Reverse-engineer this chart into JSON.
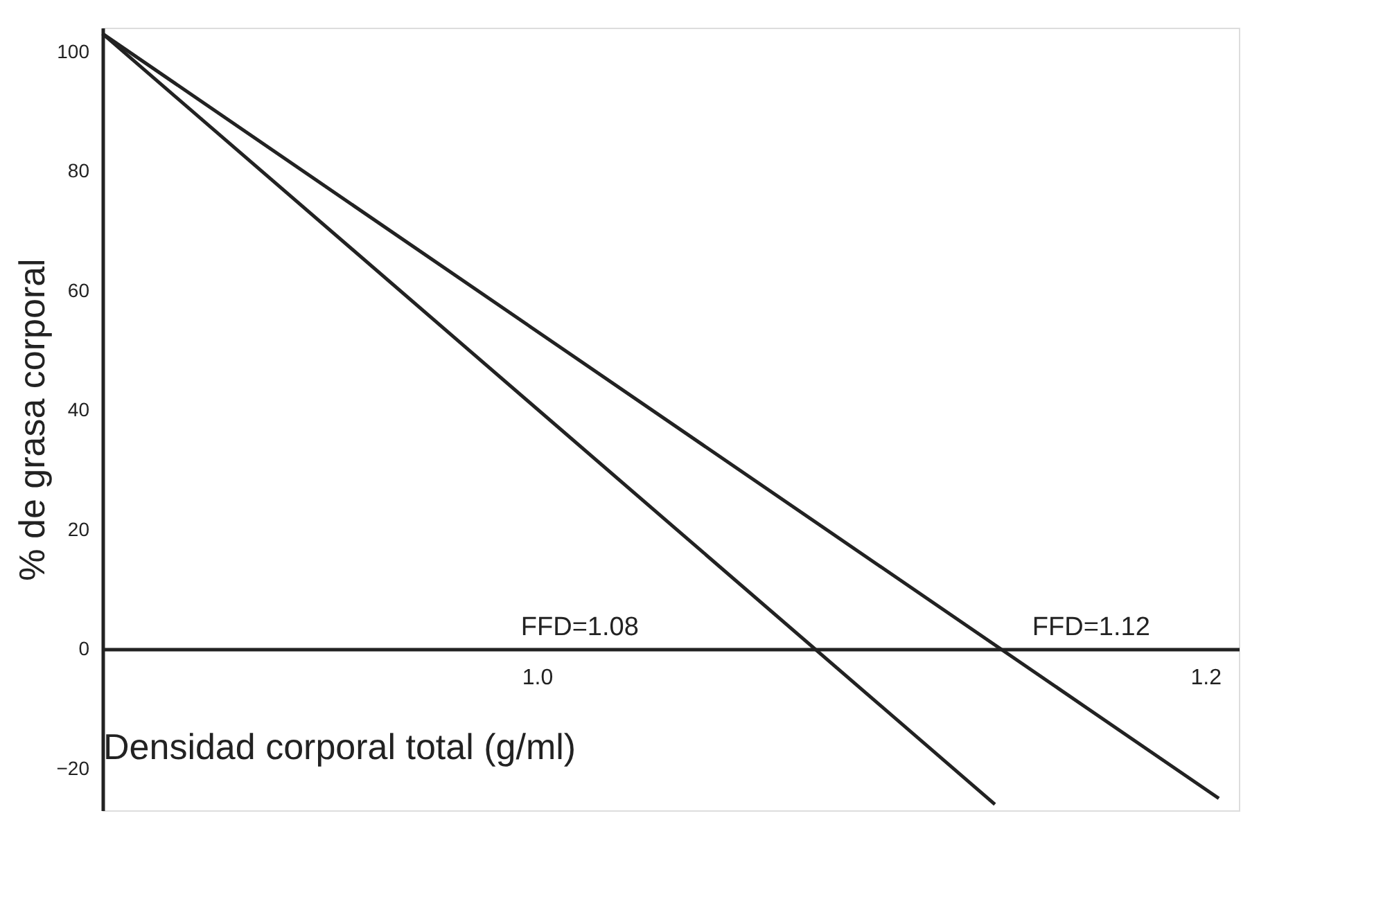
{
  "chart_data": {
    "type": "line",
    "xlabel": "Densidad corporal total (g/ml)",
    "ylabel": "% de grasa corporal",
    "series": [
      {
        "color": "#222222",
        "x": [
          0.87,
          1.137
        ],
        "values": [
          103,
          -26
        ]
      },
      {
        "color": "#222222",
        "x": [
          0.87,
          1.204
        ],
        "values": [
          103,
          -25
        ]
      }
    ],
    "xlim": [
      0.87,
      1.21
    ],
    "xticks": [
      {
        "value": 1.0,
        "label": "1.0"
      },
      {
        "value": 1.2,
        "label": "1.2"
      }
    ],
    "ylim": [
      -27,
      104
    ],
    "yticks": [
      -20,
      0,
      20,
      40,
      60,
      80,
      100
    ],
    "annotations": [
      "FFD=1.08",
      "FFD=1.12"
    ],
    "grid": false,
    "legend": false,
    "marker": "none",
    "line_style": "solid"
  }
}
